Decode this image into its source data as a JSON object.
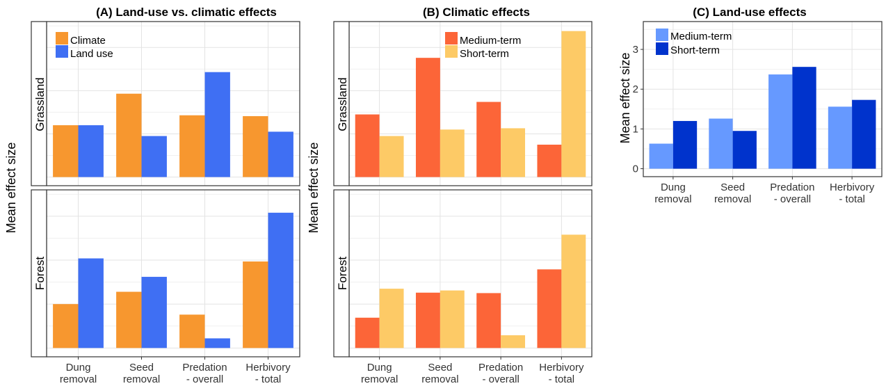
{
  "charts": {
    "A": {
      "title": "(A) Land-use vs. climatic effects",
      "ylabel": "Mean effect size",
      "legend": [
        "Climate",
        "Land use"
      ],
      "strips": [
        "Grassland",
        "Forest"
      ]
    },
    "B": {
      "title": "(B) Climatic effects",
      "ylabel": "Mean effect size",
      "legend": [
        "Medium-term",
        "Short-term"
      ],
      "strips": [
        "Grassland",
        "Forest"
      ]
    },
    "C": {
      "title": "(C) Land-use effects",
      "ylabel": "Mean effect size",
      "legend": [
        "Medium-term",
        "Short-term"
      ]
    }
  },
  "chart_data": [
    {
      "id": "A",
      "type": "bar",
      "title": "(A) Land-use vs. climatic effects",
      "ylabel": "Mean effect size",
      "categories": [
        "Dung removal",
        "Seed removal",
        "Predation - overall",
        "Herbivory - total"
      ],
      "category_lines": [
        [
          "Dung",
          "removal"
        ],
        [
          "Seed",
          "removal"
        ],
        [
          "Predation",
          "- overall"
        ],
        [
          "Herbivory",
          "- total"
        ]
      ],
      "ylim": [
        -0.2,
        3.6
      ],
      "yticks": [
        0,
        1,
        2,
        3
      ],
      "grid": true,
      "legend_position": "top-left",
      "colors": [
        "#F7972F",
        "#3F6FF3"
      ],
      "facets": [
        {
          "strip": "Grassland",
          "series": [
            {
              "name": "Climate",
              "values": [
                1.2,
                1.93,
                1.43,
                1.41
              ]
            },
            {
              "name": "Land use",
              "values": [
                1.2,
                0.95,
                2.43,
                1.05
              ]
            }
          ]
        },
        {
          "strip": "Forest",
          "series": [
            {
              "name": "Climate",
              "values": [
                1.0,
                1.28,
                0.76,
                1.97
              ]
            },
            {
              "name": "Land use",
              "values": [
                2.04,
                1.62,
                0.22,
                3.08
              ]
            }
          ]
        }
      ]
    },
    {
      "id": "B",
      "type": "bar",
      "title": "(B) Climatic effects",
      "ylabel": "Mean effect size",
      "categories": [
        "Dung removal",
        "Seed removal",
        "Predation - overall",
        "Herbivory - total"
      ],
      "category_lines": [
        [
          "Dung",
          "removal"
        ],
        [
          "Seed",
          "removal"
        ],
        [
          "Predation",
          "- overall"
        ],
        [
          "Herbivory",
          "- total"
        ]
      ],
      "ylim": [
        -0.2,
        3.6
      ],
      "yticks": [
        0,
        1,
        2,
        3
      ],
      "grid": true,
      "legend_position": "top-right",
      "colors": [
        "#FC6538",
        "#FDCA66"
      ],
      "facets": [
        {
          "strip": "Grassland",
          "series": [
            {
              "name": "Medium-term",
              "values": [
                1.45,
                2.76,
                1.74,
                0.75
              ]
            },
            {
              "name": "Short-term",
              "values": [
                0.95,
                1.1,
                1.13,
                3.38
              ]
            }
          ]
        },
        {
          "strip": "Forest",
          "series": [
            {
              "name": "Medium-term",
              "values": [
                0.69,
                1.26,
                1.25,
                1.79
              ]
            },
            {
              "name": "Short-term",
              "values": [
                1.35,
                1.31,
                0.29,
                2.58
              ]
            }
          ]
        }
      ]
    },
    {
      "id": "C",
      "type": "bar",
      "title": "(C) Land-use effects",
      "ylabel": "Mean effect size",
      "categories": [
        "Dung removal",
        "Seed removal",
        "Predation - overall",
        "Herbivory - total"
      ],
      "category_lines": [
        [
          "Dung",
          "removal"
        ],
        [
          "Seed",
          "removal"
        ],
        [
          "Predation",
          "- overall"
        ],
        [
          "Herbivory",
          "- total"
        ]
      ],
      "ylim": [
        -0.2,
        3.7
      ],
      "yticks": [
        0,
        1,
        2,
        3
      ],
      "grid": true,
      "legend_position": "top-left",
      "colors": [
        "#6699FF",
        "#0033CC"
      ],
      "facets": [
        {
          "strip": null,
          "series": [
            {
              "name": "Medium-term",
              "values": [
                0.63,
                1.26,
                2.37,
                1.56
              ]
            },
            {
              "name": "Short-term",
              "values": [
                1.2,
                0.95,
                2.56,
                1.73
              ]
            }
          ]
        }
      ]
    }
  ]
}
